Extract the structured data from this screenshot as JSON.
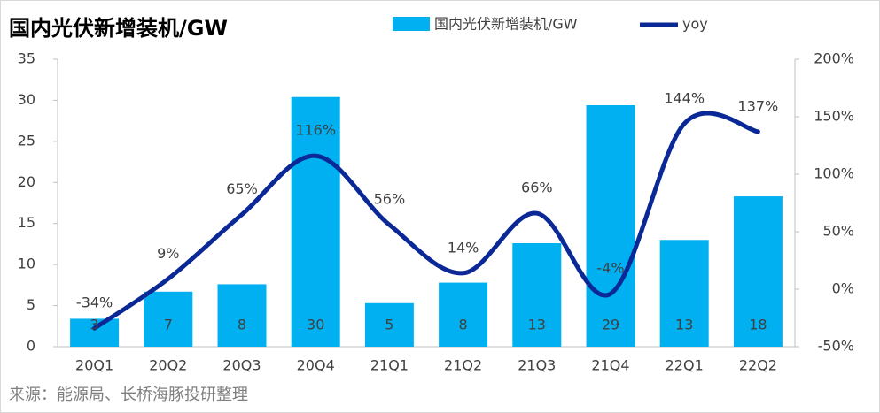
{
  "chart_data": {
    "type": "bar-line",
    "title": "国内光伏新增装机/GW",
    "source": "来源：能源局、长桥海豚投研整理",
    "categories": [
      "20Q1",
      "20Q2",
      "20Q3",
      "20Q4",
      "21Q1",
      "21Q2",
      "21Q3",
      "21Q4",
      "22Q1",
      "22Q2"
    ],
    "series": [
      {
        "name": "国内光伏新增装机/GW",
        "color": "#00b0f0",
        "values": [
          3.4,
          6.7,
          7.6,
          30.4,
          5.3,
          7.8,
          12.6,
          29.4,
          13.0,
          18.3
        ],
        "value_labels": [
          "3",
          "7",
          "8",
          "30",
          "5",
          "8",
          "13",
          "29",
          "13",
          "18"
        ]
      },
      {
        "name": "yoy",
        "color": "#0a2896",
        "axis": "y2",
        "values": [
          -34,
          9,
          65,
          116,
          56,
          14,
          66,
          -4,
          144,
          137
        ],
        "value_labels": [
          "-34%",
          "9%",
          "65%",
          "116%",
          "56%",
          "14%",
          "66%",
          "-4%",
          "144%",
          "137%"
        ]
      }
    ],
    "ylim": [
      0,
      35
    ],
    "yticks": [
      0,
      5,
      10,
      15,
      20,
      25,
      30,
      35
    ],
    "y2lim": [
      -50,
      200
    ],
    "y2ticks": [
      {
        "value": -50,
        "label": "-50%"
      },
      {
        "value": 0,
        "label": "0%"
      },
      {
        "value": 50,
        "label": "50%"
      },
      {
        "value": 100,
        "label": "100%"
      },
      {
        "value": 150,
        "label": "150%"
      },
      {
        "value": 200,
        "label": "200%"
      }
    ]
  }
}
